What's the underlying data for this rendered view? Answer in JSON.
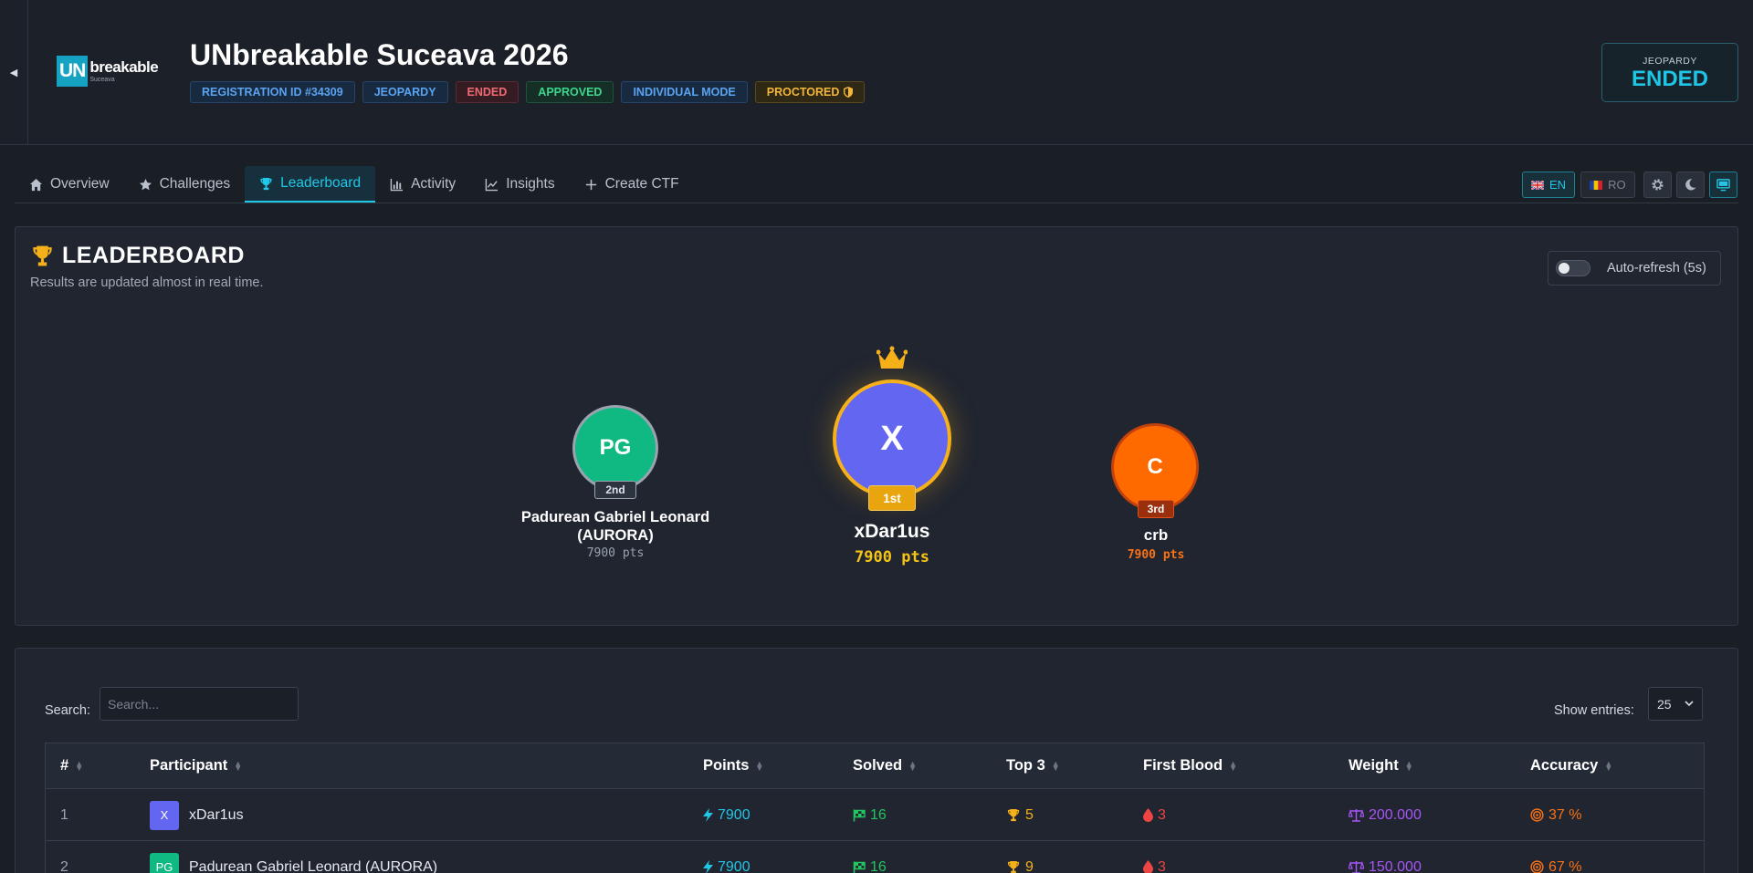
{
  "header": {
    "title": "UNbreakable Suceava 2026",
    "logo": {
      "mark": "UN",
      "word": "breakable",
      "sub": "Suceava"
    },
    "badges": [
      {
        "label": "REGISTRATION ID #34309"
      },
      {
        "label": "JEOPARDY"
      },
      {
        "label": "ENDED"
      },
      {
        "label": "APPROVED"
      },
      {
        "label": "INDIVIDUAL MODE"
      },
      {
        "label": "PROCTORED"
      }
    ],
    "status": {
      "kind": "JEOPARDY",
      "value": "ENDED"
    }
  },
  "tabs": [
    {
      "label": "Overview",
      "icon": "home-icon"
    },
    {
      "label": "Challenges",
      "icon": "star-icon"
    },
    {
      "label": "Leaderboard",
      "icon": "trophy-icon",
      "active": true
    },
    {
      "label": "Activity",
      "icon": "bar-chart-icon"
    },
    {
      "label": "Insights",
      "icon": "line-chart-icon"
    },
    {
      "label": "Create CTF",
      "icon": "plus-icon"
    }
  ],
  "languages": [
    {
      "code": "EN",
      "active": true
    },
    {
      "code": "RO",
      "active": false
    }
  ],
  "leaderboard": {
    "title": "LEADERBOARD",
    "subtitle": "Results are updated almost in real time.",
    "auto_refresh_label": "Auto-refresh (5s)",
    "auto_refresh_on": false,
    "podium": [
      {
        "rank": "1st",
        "initials": "X",
        "name": "xDar1us",
        "points": "7900 pts",
        "color": "#6366f1",
        "ring": "#f5b01a"
      },
      {
        "rank": "2nd",
        "initials": "PG",
        "name": "Padurean Gabriel Leonard (AURORA)",
        "points": "7900 pts",
        "color": "#10b981",
        "ring": "#9aa3af"
      },
      {
        "rank": "3rd",
        "initials": "C",
        "name": "crb",
        "points": "7900 pts",
        "color": "#ff6a00",
        "ring": "#c2410c"
      }
    ]
  },
  "table": {
    "search_label": "Search:",
    "search_placeholder": "Search...",
    "search_value": "",
    "entries_label": "Show entries:",
    "entries_value": "25",
    "columns": [
      "#",
      "Participant",
      "Points",
      "Solved",
      "Top 3",
      "First Blood",
      "Weight",
      "Accuracy"
    ],
    "rows": [
      {
        "rank": "1",
        "initials": "X",
        "avatar_color": "#6366f1",
        "name": "xDar1us",
        "points": "7900",
        "solved": "16",
        "top3": "5",
        "first_blood": "3",
        "weight": "200.000",
        "accuracy": "37 %"
      },
      {
        "rank": "2",
        "initials": "PG",
        "avatar_color": "#10b981",
        "name": "Padurean Gabriel Leonard (AURORA)",
        "points": "7900",
        "solved": "16",
        "top3": "9",
        "first_blood": "3",
        "weight": "150.000",
        "accuracy": "67 %"
      }
    ]
  },
  "colors": {
    "accent": "#22c6e6",
    "points": "#22c6e6",
    "solved": "#22c55e",
    "top3": "#f5b01a",
    "first_blood": "#ef4444",
    "weight": "#a855f7",
    "accuracy": "#f97316"
  }
}
